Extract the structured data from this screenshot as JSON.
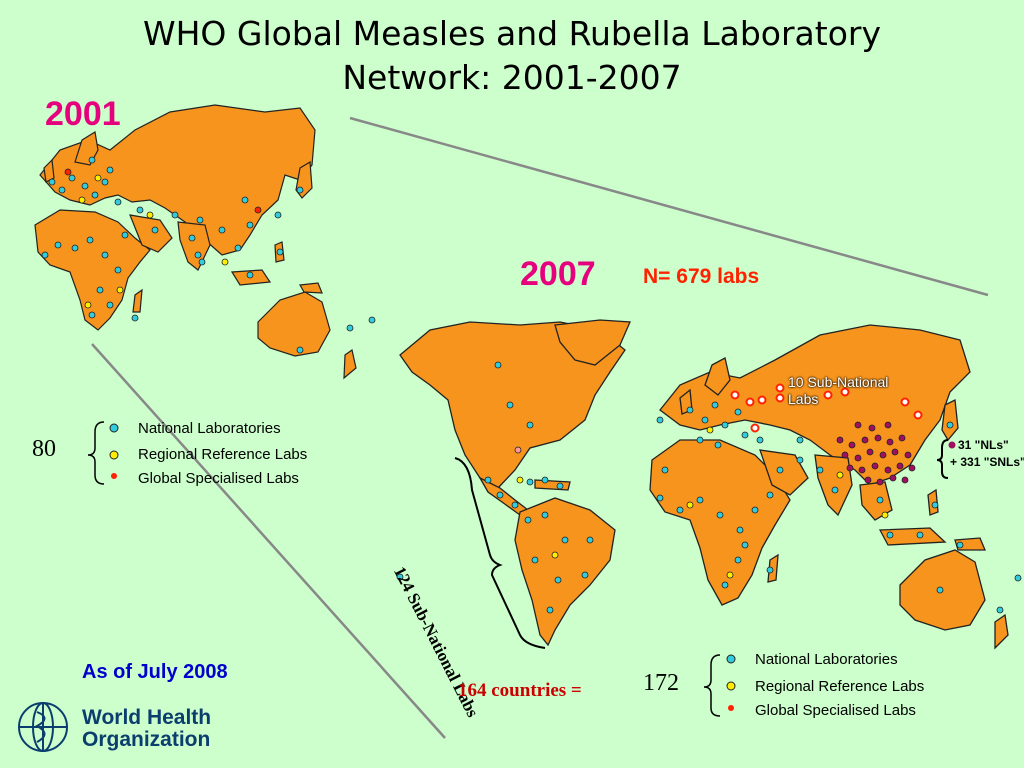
{
  "title_line1": "WHO Global Measles and Rubella Laboratory",
  "title_line2": "Network: 2001-2007",
  "year_2001": "2001",
  "year_2007": "2007",
  "n_labs": "N= 679 labs",
  "legend_2001": {
    "count": "80",
    "items": [
      "National Laboratories",
      "Regional Reference Labs",
      "Global Specialised Labs"
    ]
  },
  "legend_2007": {
    "count": "172",
    "items": [
      "National Laboratories",
      "Regional Reference Labs",
      "Global Specialised Labs"
    ]
  },
  "sub_national_americas": "124 Sub-National Labs",
  "sub_national_europe": "10 Sub-National Labs",
  "china_nls": "31 \"NLs\"",
  "china_snls": "+ 331 \"SNLs\"",
  "countries": "164 countries =",
  "as_of": "As of July 2008",
  "who_line1": "World Health",
  "who_line2": "Organization",
  "colors": {
    "background": "#ccffcc",
    "land": "#f7941d",
    "national_lab": "#33ccdd",
    "regional_lab": "#ffee00",
    "global_lab": "#ff2200",
    "china_lab": "#a01060"
  },
  "icons": [
    "who-emblem-icon",
    "national-lab-dot-icon",
    "regional-lab-dot-icon",
    "global-lab-dot-icon"
  ]
}
